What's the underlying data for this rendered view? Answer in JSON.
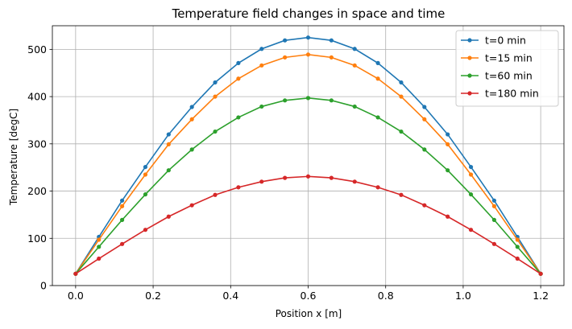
{
  "chart_data": {
    "type": "line",
    "title": "Temperature field changes in space and time",
    "xlabel": "Position x [m]",
    "ylabel": "Temperature [degC]",
    "xlim": [
      -0.06,
      1.26
    ],
    "ylim": [
      0,
      550
    ],
    "xticks": [
      0.0,
      0.2,
      0.4,
      0.6,
      0.8,
      1.0,
      1.2
    ],
    "xtick_labels": [
      "0.0",
      "0.2",
      "0.4",
      "0.6",
      "0.8",
      "1.0",
      "1.2"
    ],
    "yticks": [
      0,
      100,
      200,
      300,
      400,
      500
    ],
    "ytick_labels": [
      "0",
      "100",
      "200",
      "300",
      "400",
      "500"
    ],
    "grid": true,
    "legend_position": "top-right",
    "x": [
      0.0,
      0.06,
      0.12,
      0.18,
      0.24,
      0.3,
      0.36,
      0.42,
      0.48,
      0.54,
      0.6,
      0.66,
      0.72,
      0.78,
      0.84,
      0.9,
      0.96,
      1.02,
      1.08,
      1.14,
      1.2
    ],
    "series": [
      {
        "name": "t=0 min",
        "color": "#1f77b4",
        "values": [
          25,
          103,
          180,
          251,
          320,
          378,
          430,
          471,
          501,
          519,
          525,
          519,
          501,
          471,
          430,
          378,
          320,
          251,
          180,
          103,
          25
        ]
      },
      {
        "name": "t=15 min",
        "color": "#ff7f0e",
        "values": [
          25,
          97,
          168,
          235,
          299,
          352,
          400,
          438,
          466,
          483,
          489,
          483,
          466,
          438,
          400,
          352,
          299,
          235,
          168,
          97,
          25
        ]
      },
      {
        "name": "t=60 min",
        "color": "#2ca02c",
        "values": [
          25,
          82,
          139,
          193,
          244,
          288,
          326,
          356,
          379,
          392,
          397,
          392,
          379,
          356,
          326,
          288,
          244,
          193,
          139,
          82,
          25
        ]
      },
      {
        "name": "t=180 min",
        "color": "#d62728",
        "values": [
          25,
          57,
          88,
          118,
          146,
          170,
          192,
          208,
          220,
          228,
          231,
          228,
          220,
          208,
          192,
          170,
          146,
          118,
          88,
          57,
          25
        ]
      }
    ]
  }
}
